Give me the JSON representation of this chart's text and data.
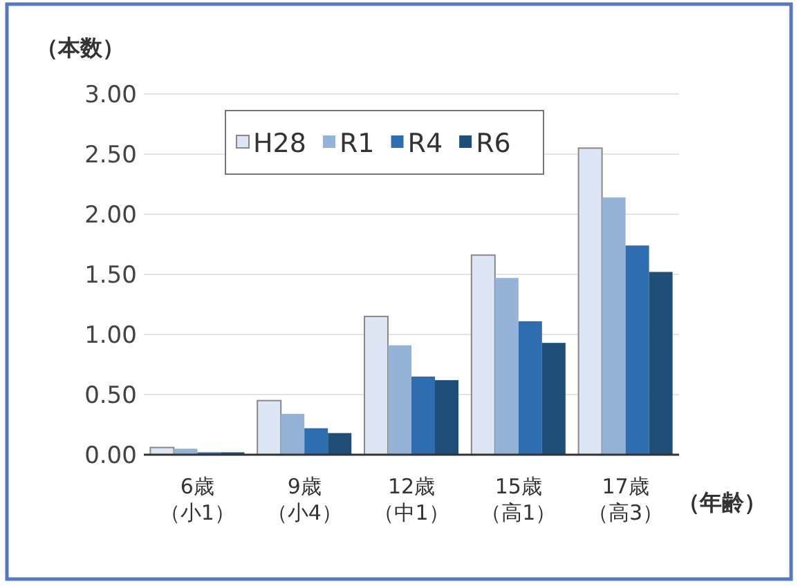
{
  "chart_data": {
    "type": "bar",
    "ylabel": "（本数）",
    "xlabel": "（年齢）",
    "categories": [
      "6歳（小1）",
      "9歳（小4）",
      "12歳（中1）",
      "15歳（高1）",
      "17歳（高3）"
    ],
    "series": [
      {
        "name": "H28",
        "color": "#dce6f4",
        "values": [
          0.06,
          0.45,
          1.15,
          1.66,
          2.55
        ]
      },
      {
        "name": "R1",
        "color": "#95b3d7",
        "values": [
          0.05,
          0.34,
          0.91,
          1.47,
          2.14
        ]
      },
      {
        "name": "R4",
        "color": "#2e6db0",
        "values": [
          0.02,
          0.22,
          0.65,
          1.11,
          1.74
        ]
      },
      {
        "name": "R6",
        "color": "#1f4e79",
        "values": [
          0.02,
          0.18,
          0.62,
          0.93,
          1.52
        ]
      }
    ],
    "ylim": [
      0,
      3
    ],
    "yticks": [
      {
        "value": 0,
        "label": "0.00"
      },
      {
        "value": 0.5,
        "label": "0.50"
      },
      {
        "value": 1,
        "label": "1.00"
      },
      {
        "value": 1.5,
        "label": "1.50"
      },
      {
        "value": 2,
        "label": "2.00"
      },
      {
        "value": 2.5,
        "label": "2.50"
      },
      {
        "value": 3,
        "label": "3.00"
      }
    ],
    "grid": "y",
    "legend": "top"
  }
}
